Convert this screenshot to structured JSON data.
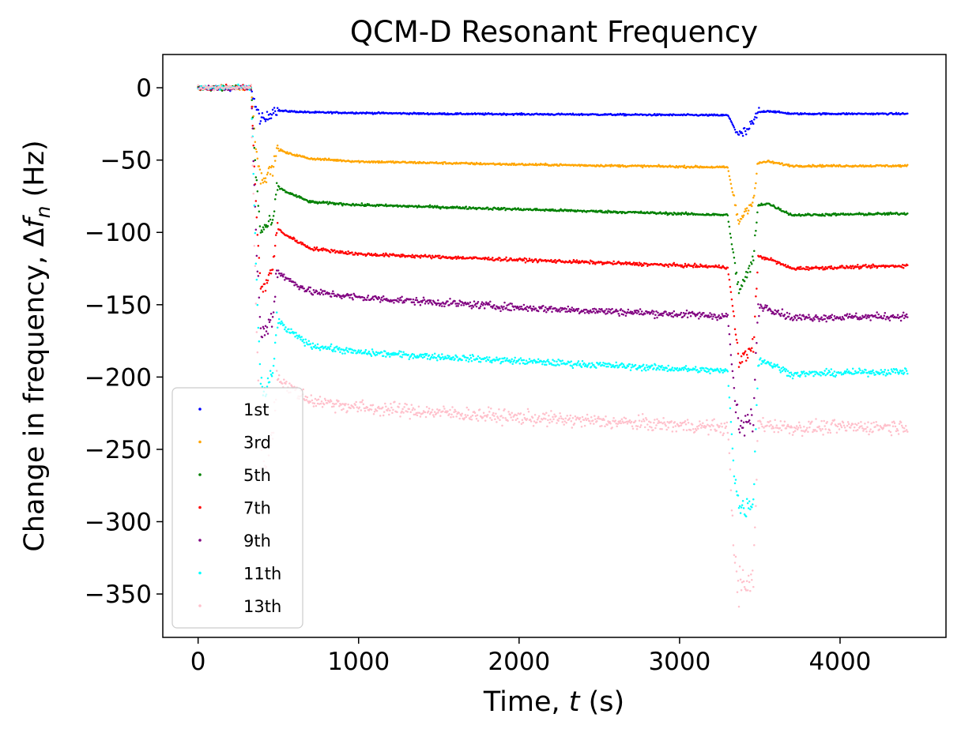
{
  "chart_data": {
    "type": "scatter",
    "title": "QCM-D Resonant Frequency",
    "xlabel": {
      "prefix": "Time, ",
      "var": "t",
      "suffix": " (s)"
    },
    "ylabel": {
      "prefix": "Change in frequency, Δ",
      "var": "f",
      "sub": "n",
      "suffix": " (Hz)"
    },
    "xlim": [
      -220,
      4660
    ],
    "ylim": [
      -380,
      23
    ],
    "xticks": [
      0,
      1000,
      2000,
      3000,
      4000
    ],
    "xtick_labels": [
      "0",
      "1000",
      "2000",
      "3000",
      "4000"
    ],
    "yticks": [
      0,
      -50,
      -100,
      -150,
      -200,
      -250,
      -300,
      -350
    ],
    "ytick_labels": [
      "0",
      "−50",
      "−100",
      "−150",
      "−200",
      "−250",
      "−300",
      "−350"
    ],
    "legend_position": "lower-left",
    "series": [
      {
        "name": "1st",
        "color": "#0000ff",
        "noise": 0.4,
        "points": [
          [
            0,
            0
          ],
          [
            330,
            0
          ],
          [
            360,
            -14
          ],
          [
            390,
            -22
          ],
          [
            420,
            -22
          ],
          [
            470,
            -15
          ],
          [
            520,
            -16
          ],
          [
            700,
            -17
          ],
          [
            1500,
            -18
          ],
          [
            2500,
            -18.5
          ],
          [
            3300,
            -19
          ],
          [
            3340,
            -27
          ],
          [
            3370,
            -33
          ],
          [
            3420,
            -30
          ],
          [
            3460,
            -24
          ],
          [
            3490,
            -17
          ],
          [
            3550,
            -16
          ],
          [
            3700,
            -18
          ],
          [
            4420,
            -18
          ]
        ]
      },
      {
        "name": "3rd",
        "color": "#ffa500",
        "noise": 0.5,
        "points": [
          [
            0,
            0
          ],
          [
            330,
            0
          ],
          [
            360,
            -40
          ],
          [
            390,
            -63
          ],
          [
            420,
            -61
          ],
          [
            470,
            -55
          ],
          [
            490,
            -42
          ],
          [
            550,
            -45
          ],
          [
            700,
            -49
          ],
          [
            1000,
            -51
          ],
          [
            2000,
            -53
          ],
          [
            3300,
            -55
          ],
          [
            3340,
            -78
          ],
          [
            3370,
            -93
          ],
          [
            3420,
            -83
          ],
          [
            3460,
            -78
          ],
          [
            3490,
            -52
          ],
          [
            3550,
            -51
          ],
          [
            3700,
            -54
          ],
          [
            4420,
            -54
          ]
        ]
      },
      {
        "name": "5th",
        "color": "#008000",
        "noise": 0.6,
        "points": [
          [
            0,
            0
          ],
          [
            330,
            0
          ],
          [
            360,
            -60
          ],
          [
            390,
            -100
          ],
          [
            420,
            -96
          ],
          [
            470,
            -92
          ],
          [
            490,
            -68
          ],
          [
            550,
            -72
          ],
          [
            700,
            -79
          ],
          [
            1000,
            -81
          ],
          [
            2000,
            -84
          ],
          [
            3300,
            -88
          ],
          [
            3340,
            -120
          ],
          [
            3370,
            -140
          ],
          [
            3420,
            -130
          ],
          [
            3460,
            -118
          ],
          [
            3490,
            -81
          ],
          [
            3550,
            -80
          ],
          [
            3700,
            -88
          ],
          [
            4420,
            -87
          ]
        ]
      },
      {
        "name": "7th",
        "color": "#ff0000",
        "noise": 0.8,
        "points": [
          [
            0,
            0
          ],
          [
            330,
            0
          ],
          [
            360,
            -80
          ],
          [
            390,
            -140
          ],
          [
            420,
            -136
          ],
          [
            470,
            -122
          ],
          [
            490,
            -97
          ],
          [
            550,
            -102
          ],
          [
            700,
            -111
          ],
          [
            1000,
            -115
          ],
          [
            2000,
            -119
          ],
          [
            3300,
            -124
          ],
          [
            3340,
            -160
          ],
          [
            3370,
            -190
          ],
          [
            3420,
            -184
          ],
          [
            3460,
            -178
          ],
          [
            3490,
            -117
          ],
          [
            3550,
            -118
          ],
          [
            3700,
            -125
          ],
          [
            4420,
            -123
          ]
        ]
      },
      {
        "name": "9th",
        "color": "#800080",
        "noise": 1.8,
        "points": [
          [
            0,
            0
          ],
          [
            330,
            0
          ],
          [
            360,
            -100
          ],
          [
            390,
            -170
          ],
          [
            420,
            -168
          ],
          [
            470,
            -155
          ],
          [
            490,
            -126
          ],
          [
            550,
            -132
          ],
          [
            700,
            -141
          ],
          [
            1000,
            -145
          ],
          [
            2000,
            -152
          ],
          [
            3300,
            -158
          ],
          [
            3340,
            -210
          ],
          [
            3370,
            -236
          ],
          [
            3420,
            -232
          ],
          [
            3460,
            -228
          ],
          [
            3490,
            -151
          ],
          [
            3550,
            -152
          ],
          [
            3700,
            -159
          ],
          [
            4420,
            -158
          ]
        ]
      },
      {
        "name": "11th",
        "color": "#00ffff",
        "noise": 1.6,
        "points": [
          [
            0,
            0
          ],
          [
            330,
            0
          ],
          [
            360,
            -120
          ],
          [
            390,
            -205
          ],
          [
            420,
            -212
          ],
          [
            470,
            -195
          ],
          [
            490,
            -160
          ],
          [
            550,
            -167
          ],
          [
            700,
            -178
          ],
          [
            1000,
            -183
          ],
          [
            2000,
            -189
          ],
          [
            3300,
            -196
          ],
          [
            3340,
            -265
          ],
          [
            3370,
            -290
          ],
          [
            3420,
            -290
          ],
          [
            3460,
            -285
          ],
          [
            3490,
            -188
          ],
          [
            3550,
            -190
          ],
          [
            3700,
            -198
          ],
          [
            4420,
            -196
          ]
        ]
      },
      {
        "name": "13th",
        "color": "#ffc0cb",
        "noise": 3.5,
        "points": [
          [
            0,
            0
          ],
          [
            330,
            0
          ],
          [
            360,
            -150
          ],
          [
            390,
            -250
          ],
          [
            420,
            -262
          ],
          [
            470,
            -236
          ],
          [
            490,
            -198
          ],
          [
            550,
            -206
          ],
          [
            700,
            -216
          ],
          [
            1000,
            -221
          ],
          [
            2000,
            -228
          ],
          [
            3300,
            -235
          ],
          [
            3340,
            -320
          ],
          [
            3370,
            -345
          ],
          [
            3420,
            -345
          ],
          [
            3460,
            -340
          ],
          [
            3490,
            -232
          ],
          [
            3550,
            -233
          ],
          [
            3700,
            -235
          ],
          [
            4420,
            -234
          ]
        ]
      }
    ]
  }
}
